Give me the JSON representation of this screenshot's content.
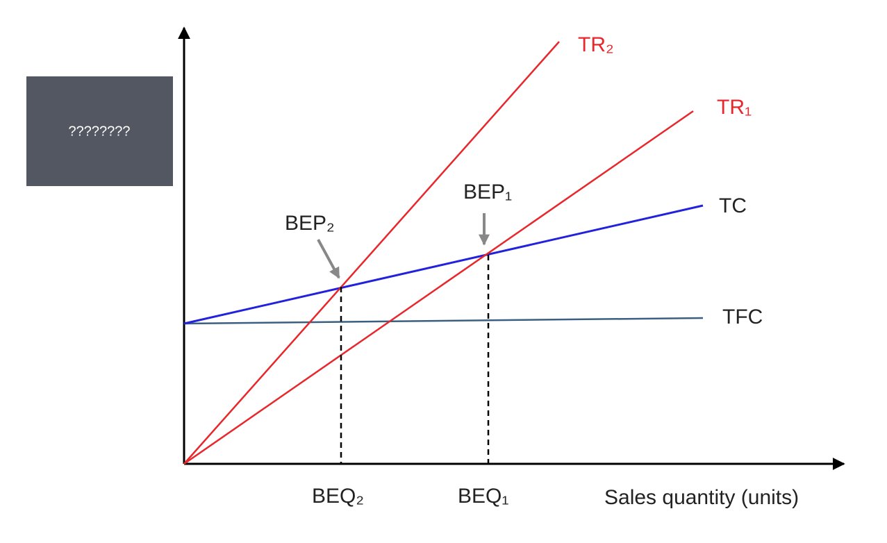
{
  "overlay_box": {
    "text": "????????"
  },
  "curves": {
    "tr2": "TR₂",
    "tr1": "TR₁",
    "tc": "TC",
    "tfc": "TFC"
  },
  "points": {
    "bep2": "BEP₂",
    "bep1": "BEP₁"
  },
  "quantities": {
    "beq2": "BEQ₂",
    "beq1": "BEQ₁"
  },
  "x_axis_label": "Sales quantity (units)"
}
